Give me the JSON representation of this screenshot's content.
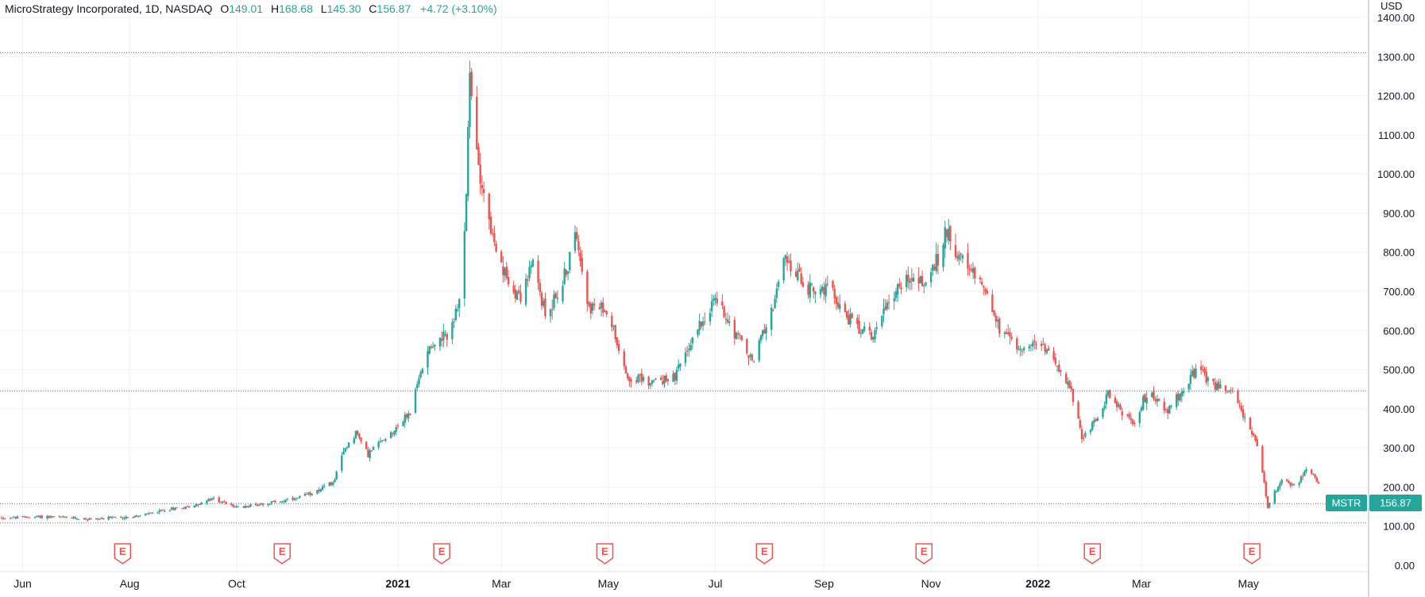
{
  "header": {
    "symbol_title": "MicroStrategy Incorporated, 1D, NASDAQ",
    "open_label": "O",
    "open_value": "149.01",
    "high_label": "H",
    "high_value": "168.68",
    "low_label": "L",
    "low_value": "145.30",
    "close_label": "C",
    "close_value": "156.87",
    "change": "+4.72 (+3.10%)"
  },
  "price_tag": {
    "symbol": "MSTR",
    "value": "156.87"
  },
  "currency": "USD",
  "colors": {
    "up": "#26a69a",
    "down": "#ef5350",
    "grid": "#f0f3fa",
    "axis_text": "#131722",
    "dotted": "#787b86"
  },
  "chart_data": {
    "type": "candlestick",
    "title": "MicroStrategy Incorporated, 1D, NASDAQ",
    "ylabel": "USD",
    "ylim": [
      0,
      1400
    ],
    "y_ticks": [
      "1400.00",
      "1300.00",
      "1200.00",
      "1100.00",
      "1000.00",
      "900.00",
      "800.00",
      "700.00",
      "600.00",
      "500.00",
      "400.00",
      "300.00",
      "200.00",
      "100.00",
      "0.00"
    ],
    "x_ticks": [
      {
        "label": "Jun",
        "date": "2020-06-01"
      },
      {
        "label": "Aug",
        "date": "2020-08-01"
      },
      {
        "label": "Oct",
        "date": "2020-10-01"
      },
      {
        "label": "2021",
        "date": "2021-01-01",
        "bold": true
      },
      {
        "label": "Mar",
        "date": "2021-03-01"
      },
      {
        "label": "May",
        "date": "2021-05-01"
      },
      {
        "label": "Jul",
        "date": "2021-07-01"
      },
      {
        "label": "Sep",
        "date": "2021-09-01"
      },
      {
        "label": "Nov",
        "date": "2021-11-01"
      },
      {
        "label": "2022",
        "date": "2022-01-01",
        "bold": true
      },
      {
        "label": "Mar",
        "date": "2022-03-01"
      },
      {
        "label": "May",
        "date": "2022-05-01"
      }
    ],
    "earnings_marker": "E",
    "earnings_dates": [
      "2020-07-28",
      "2020-10-27",
      "2021-01-26",
      "2021-04-29",
      "2021-07-29",
      "2021-10-28",
      "2022-02-01",
      "2022-05-03"
    ],
    "horizontal_lines": [
      1310,
      445,
      157,
      108
    ],
    "price_path": [
      [
        "2020-05-20",
        121
      ],
      [
        "2020-06-15",
        124
      ],
      [
        "2020-07-10",
        118
      ],
      [
        "2020-08-05",
        124
      ],
      [
        "2020-08-25",
        145
      ],
      [
        "2020-09-05",
        150
      ],
      [
        "2020-09-18",
        170
      ],
      [
        "2020-10-01",
        148
      ],
      [
        "2020-10-20",
        160
      ],
      [
        "2020-11-05",
        170
      ],
      [
        "2020-11-25",
        210
      ],
      [
        "2020-12-02",
        300
      ],
      [
        "2020-12-08",
        340
      ],
      [
        "2020-12-15",
        285
      ],
      [
        "2020-12-28",
        340
      ],
      [
        "2021-01-08",
        390
      ],
      [
        "2021-01-18",
        560
      ],
      [
        "2021-01-28",
        580
      ],
      [
        "2021-02-05",
        660
      ],
      [
        "2021-02-09",
        950
      ],
      [
        "2021-02-11",
        1250
      ],
      [
        "2021-02-14",
        1080
      ],
      [
        "2021-02-19",
        950
      ],
      [
        "2021-02-26",
        790
      ],
      [
        "2021-03-05",
        720
      ],
      [
        "2021-03-12",
        690
      ],
      [
        "2021-03-19",
        770
      ],
      [
        "2021-03-26",
        640
      ],
      [
        "2021-04-05",
        720
      ],
      [
        "2021-04-13",
        850
      ],
      [
        "2021-04-20",
        660
      ],
      [
        "2021-05-01",
        650
      ],
      [
        "2021-05-12",
        480
      ],
      [
        "2021-05-25",
        470
      ],
      [
        "2021-06-08",
        480
      ],
      [
        "2021-06-20",
        600
      ],
      [
        "2021-07-01",
        680
      ],
      [
        "2021-07-12",
        600
      ],
      [
        "2021-07-22",
        520
      ],
      [
        "2021-08-01",
        640
      ],
      [
        "2021-08-10",
        780
      ],
      [
        "2021-08-22",
        710
      ],
      [
        "2021-09-05",
        700
      ],
      [
        "2021-09-15",
        630
      ],
      [
        "2021-09-28",
        585
      ],
      [
        "2021-10-08",
        680
      ],
      [
        "2021-10-20",
        740
      ],
      [
        "2021-10-28",
        720
      ],
      [
        "2021-11-05",
        780
      ],
      [
        "2021-11-10",
        860
      ],
      [
        "2021-11-20",
        760
      ],
      [
        "2021-12-01",
        720
      ],
      [
        "2021-12-10",
        600
      ],
      [
        "2021-12-20",
        560
      ],
      [
        "2022-01-03",
        560
      ],
      [
        "2022-01-12",
        520
      ],
      [
        "2022-01-20",
        440
      ],
      [
        "2022-01-26",
        330
      ],
      [
        "2022-02-03",
        370
      ],
      [
        "2022-02-10",
        440
      ],
      [
        "2022-02-24",
        360
      ],
      [
        "2022-03-05",
        450
      ],
      [
        "2022-03-15",
        390
      ],
      [
        "2022-03-25",
        450
      ],
      [
        "2022-04-01",
        500
      ],
      [
        "2022-04-12",
        460
      ],
      [
        "2022-04-22",
        440
      ],
      [
        "2022-05-01",
        360
      ],
      [
        "2022-05-06",
        300
      ],
      [
        "2022-05-10",
        210
      ],
      [
        "2022-05-12",
        150
      ],
      [
        "2022-05-20",
        220
      ],
      [
        "2022-05-28",
        200
      ],
      [
        "2022-06-03",
        250
      ],
      [
        "2022-06-08",
        225
      ],
      [
        "2022-06-10",
        205
      ]
    ]
  }
}
